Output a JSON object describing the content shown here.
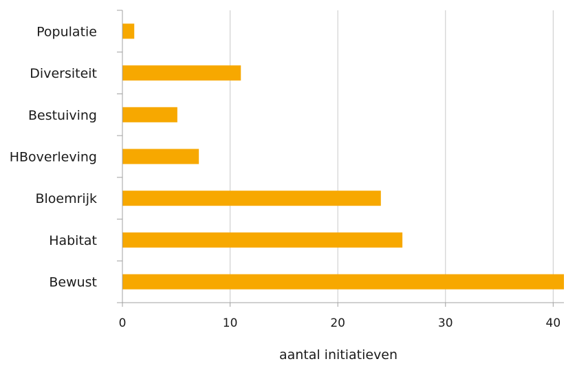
{
  "chart_data": {
    "type": "bar",
    "orientation": "horizontal",
    "categories": [
      "Populatie",
      "Diversiteit",
      "Bestuiving",
      "HBoverleving",
      "Bloemrijk",
      "Habitat",
      "Bewust"
    ],
    "values": [
      1.1,
      11,
      5.1,
      7.1,
      24,
      26,
      41
    ],
    "xlabel": "aantal initiatieven",
    "ylabel": "",
    "xlim": [
      0,
      41
    ],
    "xticks": [
      "0",
      "10",
      "20",
      "30",
      "40"
    ],
    "grid": "vertical",
    "bar_color": "#F7A800",
    "grid_color": "#C8C8C8",
    "axis_color": "#A0A0A0"
  }
}
